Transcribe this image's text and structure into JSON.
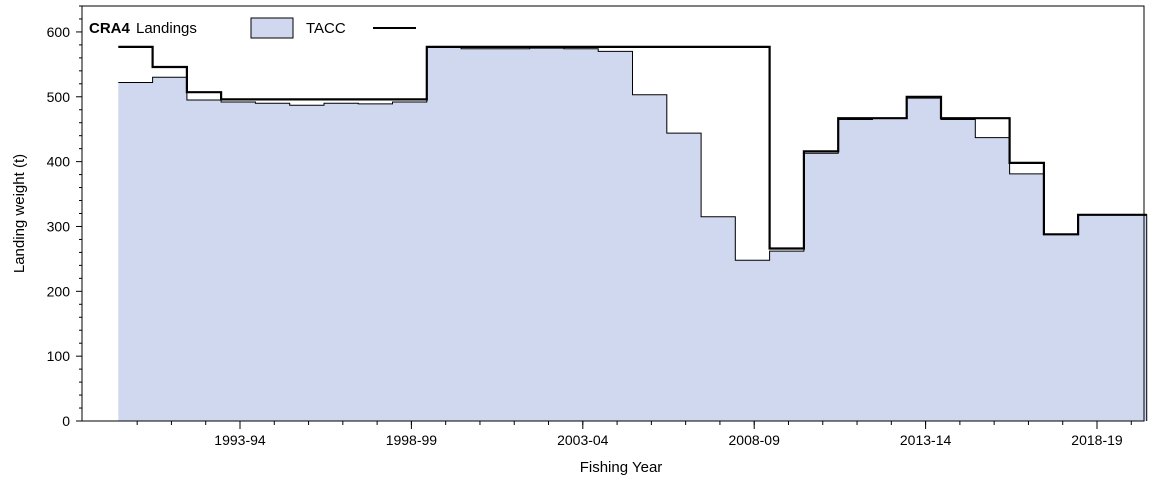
{
  "chart_data": {
    "type": "area",
    "title": "CRA4",
    "xlabel": "Fishing Year",
    "ylabel": "Landing weight (t)",
    "ylim": [
      0,
      640
    ],
    "y_ticks": [
      0,
      100,
      200,
      300,
      400,
      500,
      600
    ],
    "x_tick_labels": [
      {
        "year": 1993,
        "label": "1993-94"
      },
      {
        "year": 1998,
        "label": "1998-99"
      },
      {
        "year": 2003,
        "label": "2003-04"
      },
      {
        "year": 2008,
        "label": "2008-09"
      },
      {
        "year": 2013,
        "label": "2013-14"
      },
      {
        "year": 2018,
        "label": "2018-19"
      }
    ],
    "x": [
      1990,
      1991,
      1992,
      1993,
      1994,
      1995,
      1996,
      1997,
      1998,
      1999,
      2000,
      2001,
      2002,
      2003,
      2004,
      2005,
      2006,
      2007,
      2008,
      2009,
      2010,
      2011,
      2012,
      2013,
      2014,
      2015,
      2016,
      2017,
      2018,
      2019
    ],
    "series": [
      {
        "name": "Landings",
        "values": [
          522,
          530,
          495,
          492,
          490,
          487,
          490,
          489,
          492,
          576,
          574,
          574,
          575,
          574,
          570,
          503,
          444,
          315,
          248,
          262,
          413,
          465,
          467,
          498,
          465,
          437,
          381,
          288,
          318,
          318
        ]
      },
      {
        "name": "TACC",
        "values": [
          577,
          546,
          507,
          496,
          496,
          496,
          496,
          496,
          496,
          577,
          577,
          577,
          577,
          577,
          577,
          577,
          577,
          577,
          577,
          266,
          416,
          467,
          467,
          500,
          467,
          467,
          398,
          288,
          318,
          318
        ]
      }
    ],
    "legend": "top-left",
    "colors": {
      "landings_fill": "#d0d8f0",
      "landings_stroke": "#000000",
      "tacc_line": "#000000"
    }
  }
}
